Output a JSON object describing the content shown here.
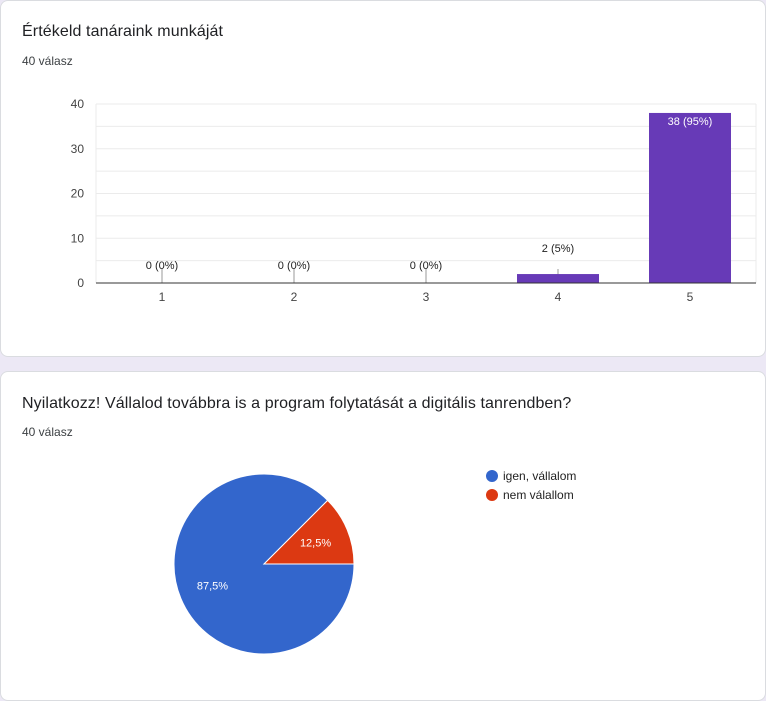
{
  "questions": [
    {
      "title": "Értékeld tanáraink munkáját",
      "response_count": "40 válasz"
    },
    {
      "title": "Nyilatkozz! Vállalod továbbra is a program folytatását a digitális tanrendben?",
      "response_count": "40 válasz"
    }
  ],
  "colors": {
    "bar": "#673ab7",
    "pie_yes": "#3366cc",
    "pie_no": "#dc3912",
    "grid": "#ebebeb",
    "axis": "#333333"
  },
  "chart_data": [
    {
      "type": "bar",
      "categories": [
        "1",
        "2",
        "3",
        "4",
        "5"
      ],
      "values": [
        0,
        0,
        0,
        2,
        38
      ],
      "data_labels": [
        "0 (0%)",
        "0 (0%)",
        "0 (0%)",
        "2 (5%)",
        "38 (95%)"
      ],
      "ylim": [
        0,
        40
      ],
      "yticks": [
        0,
        10,
        20,
        30,
        40
      ],
      "grid": true
    },
    {
      "type": "pie",
      "labels": [
        "igen, vállalom",
        "nem válallom"
      ],
      "values": [
        87.5,
        12.5
      ],
      "slice_labels": [
        "87,5%",
        "12,5%"
      ],
      "legend_position": "right"
    }
  ]
}
